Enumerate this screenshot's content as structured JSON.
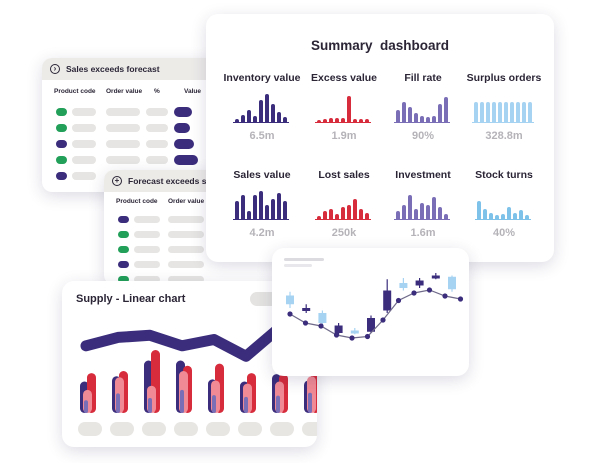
{
  "sales_panel": {
    "title": "Sales exceeds forecast",
    "columns": [
      "Product code",
      "Order value",
      "%",
      "Value"
    ],
    "row_colors": [
      "#22a05a",
      "#22a05a",
      "#3b2d7c",
      "#22a05a",
      "#3b2d7c"
    ]
  },
  "forecast_panel": {
    "title": "Forecast exceeds sales",
    "columns": [
      "Product code",
      "Order value"
    ],
    "row_colors": [
      "#3b2d7c",
      "#22a05a",
      "#22a05a",
      "#3b2d7c",
      "#22a05a"
    ]
  },
  "summary": {
    "title": "Summary  dashboard",
    "metrics": [
      {
        "label": "Inventory value",
        "value": "6.5m",
        "color": "#3b2d7c",
        "bars": [
          3,
          7,
          12,
          6,
          22,
          28,
          18,
          10,
          5
        ]
      },
      {
        "label": "Excess value",
        "value": "1.9m",
        "color": "#d62c3c",
        "bars": [
          2,
          3,
          4,
          4,
          4,
          26,
          3,
          3,
          3
        ]
      },
      {
        "label": "Fill rate",
        "value": "90%",
        "color": "#7a6fb6",
        "bars": [
          12,
          20,
          15,
          9,
          6,
          5,
          6,
          18,
          25
        ]
      },
      {
        "label": "Surplus orders",
        "value": "328.8m",
        "color": "#a7d3f2",
        "bars": [
          20,
          20,
          20,
          20,
          20,
          20,
          20,
          20,
          20,
          20
        ]
      },
      {
        "label": "Sales value",
        "value": "4.2m",
        "color": "#3b2d7c",
        "bars": [
          18,
          24,
          8,
          24,
          28,
          14,
          20,
          26,
          18
        ]
      },
      {
        "label": "Lost sales",
        "value": "250k",
        "color": "#d62c3c",
        "bars": [
          3,
          8,
          10,
          5,
          12,
          14,
          20,
          10,
          6
        ]
      },
      {
        "label": "Investment",
        "value": "1.6m",
        "color": "#7a6fb6",
        "bars": [
          8,
          14,
          24,
          10,
          16,
          14,
          22,
          12,
          5
        ]
      },
      {
        "label": "Stock turns",
        "value": "40%",
        "color": "#7ec2ea",
        "bars": [
          18,
          10,
          6,
          4,
          5,
          12,
          6,
          9,
          4
        ]
      }
    ]
  },
  "supply_chart": {
    "title": "Supply - Linear chart",
    "chart_data": {
      "type": "bar",
      "series": [
        {
          "values": [
            30,
            35,
            50,
            50,
            32,
            30,
            37,
            31
          ]
        },
        {
          "values": [
            38,
            40,
            60,
            45,
            47,
            38,
            37,
            51
          ]
        },
        {
          "values": [
            22,
            34,
            26,
            40,
            31,
            28,
            30,
            35
          ]
        }
      ],
      "trend": [
        64,
        72,
        74,
        64,
        70,
        54,
        80,
        70
      ]
    }
  },
  "candle_chart": {
    "chart_data": {
      "type": "candlestick",
      "candles": [
        {
          "open": 42,
          "close": 35,
          "high": 45,
          "low": 32,
          "color": "#a7d3f2"
        },
        {
          "open": 32,
          "close": 30,
          "high": 35,
          "low": 28,
          "color": "#3b2d7c"
        },
        {
          "open": 28,
          "close": 20,
          "high": 30,
          "low": 18,
          "color": "#a7d3f2"
        },
        {
          "open": 18,
          "close": 12,
          "high": 20,
          "low": 10,
          "color": "#3b2d7c"
        },
        {
          "open": 14,
          "close": 12,
          "high": 16,
          "low": 11,
          "color": "#a7d3f2"
        },
        {
          "open": 13,
          "close": 24,
          "high": 26,
          "low": 12,
          "color": "#3b2d7c"
        },
        {
          "open": 30,
          "close": 46,
          "high": 55,
          "low": 28,
          "color": "#3b2d7c"
        },
        {
          "open": 48,
          "close": 52,
          "high": 56,
          "low": 46,
          "color": "#a7d3f2"
        },
        {
          "open": 54,
          "close": 50,
          "high": 56,
          "low": 48,
          "color": "#3b2d7c"
        },
        {
          "open": 58,
          "close": 56,
          "high": 60,
          "low": 55,
          "color": "#3b2d7c"
        },
        {
          "open": 57,
          "close": 47,
          "high": 58,
          "low": 45,
          "color": "#a7d3f2"
        }
      ],
      "line": [
        16,
        10,
        8,
        2,
        0,
        1,
        12,
        25,
        30,
        32,
        28,
        26
      ]
    }
  }
}
